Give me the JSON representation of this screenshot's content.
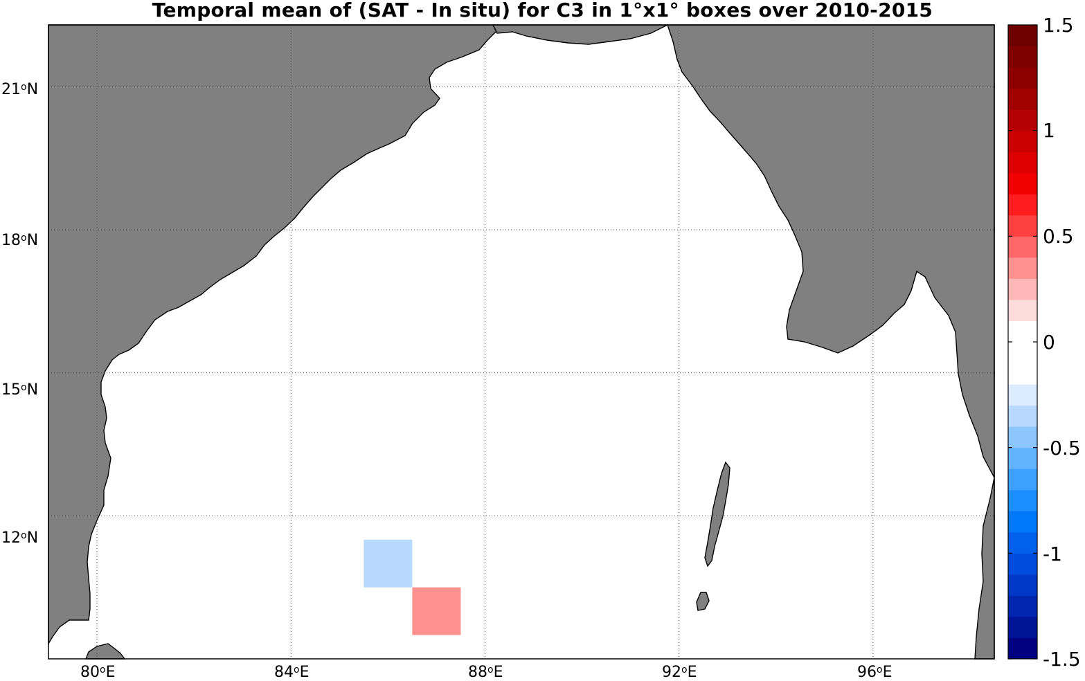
{
  "title": "Temporal mean of (SAT - In situ) for C3 in 1°x1° boxes over 2010-2015",
  "map": {
    "lon_range": [
      79,
      98.5
    ],
    "lat_range": [
      9,
      22.3
    ],
    "land_color": "#808080",
    "sea_color": "#ffffff",
    "gridlines": "dotted",
    "lon_ticks": [
      {
        "deg": "80",
        "sup": "o",
        "hemi": "E"
      },
      {
        "deg": "84",
        "sup": "o",
        "hemi": "E"
      },
      {
        "deg": "88",
        "sup": "o",
        "hemi": "E"
      },
      {
        "deg": "92",
        "sup": "o",
        "hemi": "E"
      },
      {
        "deg": "96",
        "sup": "o",
        "hemi": "E"
      }
    ],
    "lat_ticks": [
      {
        "deg": "21",
        "sup": "o",
        "hemi": "N"
      },
      {
        "deg": "18",
        "sup": "o",
        "hemi": "N"
      },
      {
        "deg": "15",
        "sup": "o",
        "hemi": "N"
      },
      {
        "deg": "12",
        "sup": "o",
        "hemi": "N"
      }
    ],
    "boxes": [
      {
        "lon_min": 85.5,
        "lon_max": 86.5,
        "lat_min": 10.5,
        "lat_max": 11.5,
        "value": -0.2,
        "color": "#b8d9ff"
      },
      {
        "lon_min": 86.5,
        "lon_max": 87.5,
        "lat_min": 9.5,
        "lat_max": 10.5,
        "value": 0.4,
        "color": "#ff9090"
      }
    ]
  },
  "colorbar": {
    "labels": [
      "1.5",
      "1",
      "0.5",
      "0",
      "-0.5",
      "-1",
      "-1.5"
    ],
    "range": [
      -1.5,
      1.5
    ],
    "colors": [
      "#000080",
      "#001498",
      "#0026b0",
      "#0038c8",
      "#004cdc",
      "#0062ec",
      "#0078fa",
      "#1d8eff",
      "#3ca0ff",
      "#63b4ff",
      "#8dc6ff",
      "#b8d9ff",
      "#dcebff",
      "#ffffff",
      "#ffffff",
      "#ffffff",
      "#ffdcdc",
      "#ffb8b8",
      "#ff9090",
      "#ff6868",
      "#ff4040",
      "#ff1c1c",
      "#f00000",
      "#dc0000",
      "#c80000",
      "#b40000",
      "#a00000",
      "#8c0000",
      "#800000",
      "#700000"
    ]
  }
}
